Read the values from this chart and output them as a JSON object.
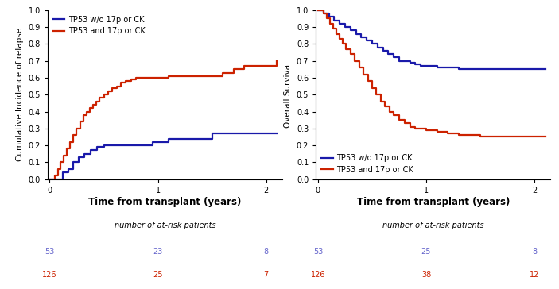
{
  "plot1": {
    "ylabel": "Cumulative Incidence of relapse",
    "xlabel": "Time from transplant (years)",
    "ylim": [
      0,
      1.0
    ],
    "xlim": [
      -0.02,
      2.15
    ],
    "yticks": [
      0.0,
      0.1,
      0.2,
      0.3,
      0.4,
      0.5,
      0.6,
      0.7,
      0.8,
      0.9,
      1.0
    ],
    "xticks": [
      0,
      1,
      2
    ],
    "blue_label": "TP53 w/o 17p or CK",
    "red_label": "TP53 and 17p or CK",
    "blue_x": [
      0,
      0.08,
      0.12,
      0.17,
      0.22,
      0.27,
      0.32,
      0.38,
      0.44,
      0.5,
      0.55,
      0.6,
      0.65,
      0.7,
      0.75,
      0.8,
      0.85,
      0.9,
      0.95,
      1.0,
      1.05,
      1.1,
      1.15,
      1.5,
      2.1
    ],
    "blue_y": [
      0,
      0.0,
      0.04,
      0.06,
      0.1,
      0.13,
      0.15,
      0.17,
      0.19,
      0.2,
      0.2,
      0.2,
      0.2,
      0.2,
      0.2,
      0.2,
      0.2,
      0.2,
      0.22,
      0.22,
      0.22,
      0.24,
      0.24,
      0.27,
      0.27
    ],
    "red_x": [
      0,
      0.05,
      0.08,
      0.1,
      0.13,
      0.16,
      0.19,
      0.22,
      0.25,
      0.28,
      0.31,
      0.34,
      0.37,
      0.4,
      0.43,
      0.46,
      0.5,
      0.54,
      0.58,
      0.62,
      0.66,
      0.7,
      0.75,
      0.8,
      0.85,
      0.9,
      1.0,
      1.1,
      1.5,
      1.6,
      1.7,
      1.8,
      2.1
    ],
    "red_y": [
      0,
      0.02,
      0.06,
      0.1,
      0.14,
      0.18,
      0.22,
      0.26,
      0.3,
      0.34,
      0.38,
      0.4,
      0.42,
      0.44,
      0.46,
      0.48,
      0.5,
      0.52,
      0.54,
      0.55,
      0.57,
      0.58,
      0.59,
      0.6,
      0.6,
      0.6,
      0.6,
      0.61,
      0.61,
      0.63,
      0.65,
      0.67,
      0.7
    ],
    "atrisk_label": "number of at-risk patients",
    "blue_atrisk": [
      "53",
      "23",
      "8"
    ],
    "red_atrisk": [
      "126",
      "25",
      "7"
    ],
    "legend_loc": "upper left"
  },
  "plot2": {
    "ylabel": "Overall Survival",
    "xlabel": "Time from transplant (years)",
    "ylim": [
      0,
      1.0
    ],
    "xlim": [
      -0.02,
      2.15
    ],
    "yticks": [
      0.0,
      0.1,
      0.2,
      0.3,
      0.4,
      0.5,
      0.6,
      0.7,
      0.8,
      0.9,
      1.0
    ],
    "xticks": [
      0,
      1,
      2
    ],
    "blue_label": "TP53 w/o 17p or CK",
    "red_label": "TP53 and 17p or CK",
    "blue_x": [
      0,
      0.05,
      0.1,
      0.15,
      0.2,
      0.25,
      0.3,
      0.35,
      0.4,
      0.45,
      0.5,
      0.55,
      0.6,
      0.65,
      0.7,
      0.75,
      0.8,
      0.85,
      0.9,
      0.95,
      1.0,
      1.1,
      1.3,
      1.5,
      2.1
    ],
    "blue_y": [
      1.0,
      0.98,
      0.96,
      0.94,
      0.92,
      0.9,
      0.88,
      0.86,
      0.84,
      0.82,
      0.8,
      0.78,
      0.76,
      0.74,
      0.72,
      0.7,
      0.7,
      0.69,
      0.68,
      0.67,
      0.67,
      0.66,
      0.65,
      0.65,
      0.65
    ],
    "red_x": [
      0,
      0.05,
      0.08,
      0.11,
      0.14,
      0.17,
      0.2,
      0.23,
      0.26,
      0.3,
      0.34,
      0.38,
      0.42,
      0.46,
      0.5,
      0.54,
      0.58,
      0.62,
      0.66,
      0.7,
      0.75,
      0.8,
      0.85,
      0.9,
      0.95,
      1.0,
      1.1,
      1.2,
      1.3,
      1.5,
      1.6,
      1.7,
      1.8,
      2.1
    ],
    "red_y": [
      1.0,
      0.98,
      0.95,
      0.92,
      0.89,
      0.86,
      0.83,
      0.8,
      0.77,
      0.74,
      0.7,
      0.66,
      0.62,
      0.58,
      0.54,
      0.5,
      0.46,
      0.43,
      0.4,
      0.38,
      0.35,
      0.33,
      0.31,
      0.3,
      0.3,
      0.29,
      0.28,
      0.27,
      0.26,
      0.25,
      0.25,
      0.25,
      0.25,
      0.25
    ],
    "atrisk_label": "number of at-risk patients",
    "blue_atrisk": [
      "53",
      "25",
      "8"
    ],
    "red_atrisk": [
      "126",
      "38",
      "12"
    ],
    "legend_loc": "lower left"
  },
  "blue_color": "#1a1aaa",
  "red_color": "#cc2200",
  "atrisk_blue_color": "#6666cc",
  "atrisk_red_color": "#cc2200",
  "linewidth": 1.6,
  "legend_fontsize": 7.0,
  "ylabel_fontsize": 7.5,
  "tick_fontsize": 7.0,
  "atrisk_fontsize": 7.0,
  "xlabel_fontsize": 8.5,
  "atrisk_sub_fontsize": 7.0
}
